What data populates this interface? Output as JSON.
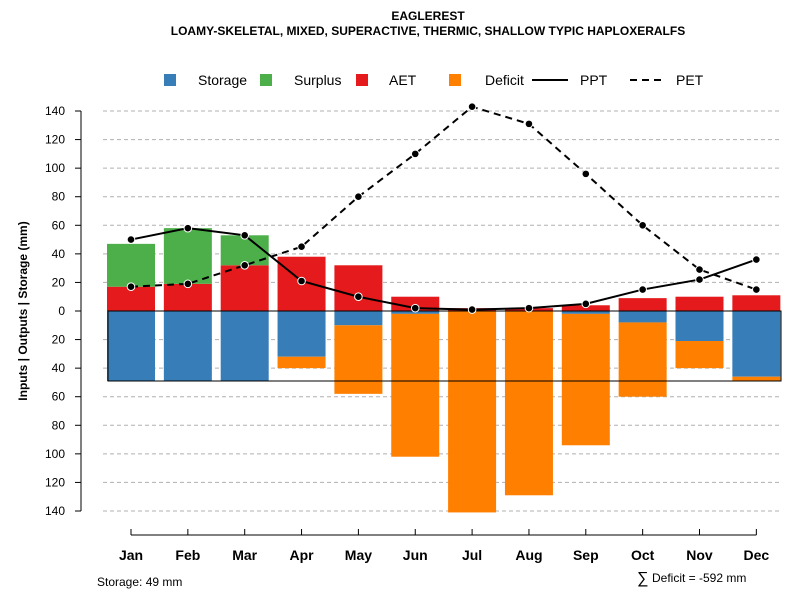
{
  "chart_data": {
    "type": "bar",
    "title": "EAGLEREST",
    "subtitle": "LOAMY-SKELETAL, MIXED, SUPERACTIVE, THERMIC, SHALLOW TYPIC HAPLOXERALFS",
    "ylabel": "Inputs | Outputs | Storage    (mm)",
    "ylim": [
      -150,
      150
    ],
    "yticks": [
      140,
      120,
      100,
      80,
      60,
      40,
      20,
      0,
      -20,
      -40,
      -60,
      -80,
      -100,
      -120,
      -140
    ],
    "ytick_labels": [
      "140",
      "120",
      "100",
      "80",
      "60",
      "40",
      "20",
      "0",
      "20",
      "40",
      "60",
      "80",
      "100",
      "120",
      "140"
    ],
    "grid": true,
    "legend_position": "top",
    "categories": [
      "Jan",
      "Feb",
      "Mar",
      "Apr",
      "May",
      "Jun",
      "Jul",
      "Aug",
      "Sep",
      "Oct",
      "Nov",
      "Dec"
    ],
    "storage_capacity": 49,
    "series": [
      {
        "name": "AET",
        "color": "#e41a1c",
        "kind": "bar",
        "values": [
          17,
          19,
          32,
          38,
          32,
          10,
          2,
          2,
          4,
          9,
          10,
          11
        ]
      },
      {
        "name": "Surplus",
        "color": "#4daf4a",
        "kind": "bar",
        "values": [
          30,
          39,
          21,
          0,
          0,
          0,
          0,
          0,
          0,
          0,
          0,
          0
        ]
      },
      {
        "name": "Storage",
        "color": "#377eb8",
        "kind": "bar",
        "values": [
          49,
          49,
          49,
          32,
          10,
          2,
          0,
          0,
          2,
          8,
          21,
          46
        ]
      },
      {
        "name": "Deficit",
        "color": "#ff7f00",
        "kind": "bar",
        "values": [
          0,
          0,
          0,
          8,
          48,
          100,
          141,
          129,
          92,
          52,
          19,
          3
        ]
      },
      {
        "name": "PPT",
        "color": "#000000",
        "kind": "line",
        "dash": "solid",
        "values": [
          50,
          58,
          53,
          21,
          10,
          2,
          1,
          2,
          5,
          15,
          22,
          36
        ]
      },
      {
        "name": "PET",
        "color": "#000000",
        "kind": "line",
        "dash": "dashed",
        "values": [
          17,
          19,
          32,
          45,
          80,
          110,
          143,
          131,
          96,
          60,
          29,
          15
        ]
      }
    ],
    "legend": [
      {
        "name": "Storage",
        "color": "#377eb8",
        "symbol": "box"
      },
      {
        "name": "Surplus",
        "color": "#4daf4a",
        "symbol": "box"
      },
      {
        "name": "AET",
        "color": "#e41a1c",
        "symbol": "box"
      },
      {
        "name": "Deficit",
        "color": "#ff7f00",
        "symbol": "box"
      },
      {
        "name": "PPT",
        "color": "#000000",
        "symbol": "solid-line"
      },
      {
        "name": "PET",
        "color": "#000000",
        "symbol": "dashed-line"
      }
    ],
    "annotations": {
      "storage_note": "Storage: 49 mm",
      "deficit_symbol": "∑",
      "deficit_note": "Deficit = -592 mm"
    }
  }
}
